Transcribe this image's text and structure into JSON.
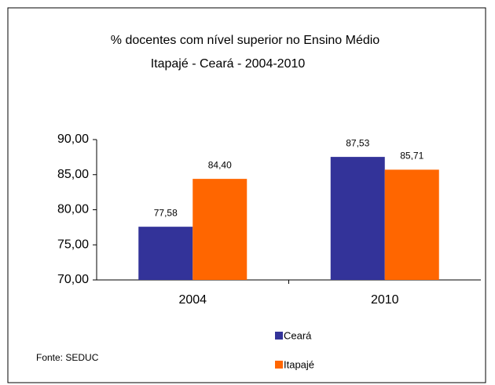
{
  "chart_data": {
    "type": "bar",
    "title": "% docentes com nível superior no Ensino Médio",
    "subtitle": "Itapajé  -  Ceará - 2004-2010",
    "categories": [
      "2004",
      "2010"
    ],
    "series": [
      {
        "name": "Ceará",
        "color": "#333399",
        "values": [
          77.58,
          87.53
        ],
        "value_labels": [
          "77,58",
          "87,53"
        ]
      },
      {
        "name": "Itapajé",
        "color": "#ff6600",
        "values": [
          84.4,
          85.71
        ],
        "value_labels": [
          "84,40",
          "85,71"
        ]
      }
    ],
    "ylim": [
      70,
      90
    ],
    "yticks": [
      {
        "value": 70,
        "label": "70,00"
      },
      {
        "value": 75,
        "label": "75,00"
      },
      {
        "value": 80,
        "label": "80,00"
      },
      {
        "value": 85,
        "label": "85,00"
      },
      {
        "value": 90,
        "label": "90,00"
      }
    ],
    "grid": false,
    "source": "Fonte: SEDUC"
  }
}
